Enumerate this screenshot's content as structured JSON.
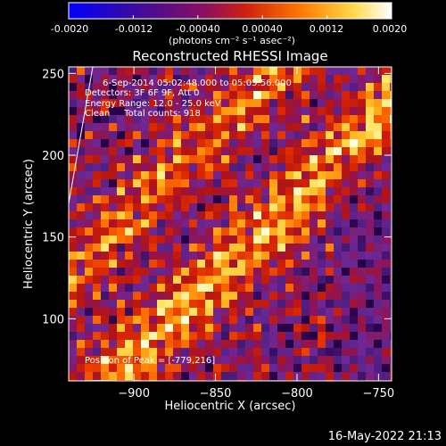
{
  "colorbar": {
    "ticks": [
      "-0.0020",
      "-0.0012",
      "-0.00040",
      "0.00040",
      "0.0012",
      "0.0020"
    ],
    "unit_label": "(photons cm⁻² s⁻¹ asec⁻²)",
    "range": [
      -0.002,
      0.002
    ],
    "colors": [
      "#0000ff",
      "#5a0a8a",
      "#b01a1a",
      "#ff6a00",
      "#ffd24a",
      "#ffffff"
    ]
  },
  "chart_data": {
    "type": "heatmap",
    "title": "Reconstructed RHESSI Image",
    "xlabel": "Heliocentric X (arcsec)",
    "ylabel": "Heliocentric Y (arcsec)",
    "xlim": [
      -940,
      -742
    ],
    "ylim": [
      62,
      254
    ],
    "x_ticks": [
      -900,
      -850,
      -800,
      -750
    ],
    "x_tick_labels": [
      "−900",
      "−850",
      "−800",
      "−750"
    ],
    "y_ticks": [
      100,
      150,
      200,
      250
    ],
    "y_tick_labels": [
      "100",
      "150",
      "200",
      "250"
    ],
    "peak_position": [
      -779,
      216
    ],
    "total_counts": 918
  },
  "annotations": {
    "line1": "6-Sep-2014 05:02:48.000 to 05:05:56.000",
    "line2": "Detectors: 3F 6F 9F, Att 0",
    "line3": "Energy Range: 12.0 - 25.0 keV",
    "line4": "Clean     Total counts: 918",
    "peak": "Position of Peak = [-779,216]"
  },
  "footer": {
    "timestamp": "16-May-2022 21:13"
  }
}
